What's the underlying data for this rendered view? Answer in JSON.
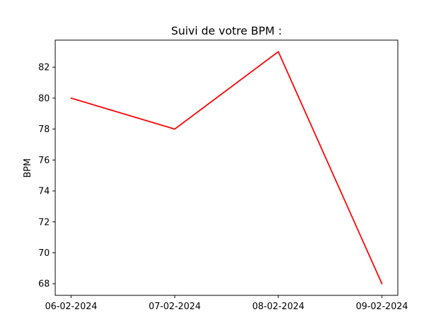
{
  "chart_data": {
    "type": "line",
    "title": "Suivi de votre BPM :",
    "xlabel": "",
    "ylabel": "BPM",
    "categories": [
      "06-02-2024",
      "07-02-2024",
      "08-02-2024",
      "09-02-2024"
    ],
    "series": [
      {
        "values": [
          80,
          78,
          83,
          68
        ],
        "color": "#ff0000"
      }
    ],
    "yticks": [
      68,
      70,
      72,
      74,
      76,
      78,
      80,
      82
    ],
    "ylim": [
      67.25,
      83.75
    ],
    "grid": false,
    "legend": "none"
  }
}
